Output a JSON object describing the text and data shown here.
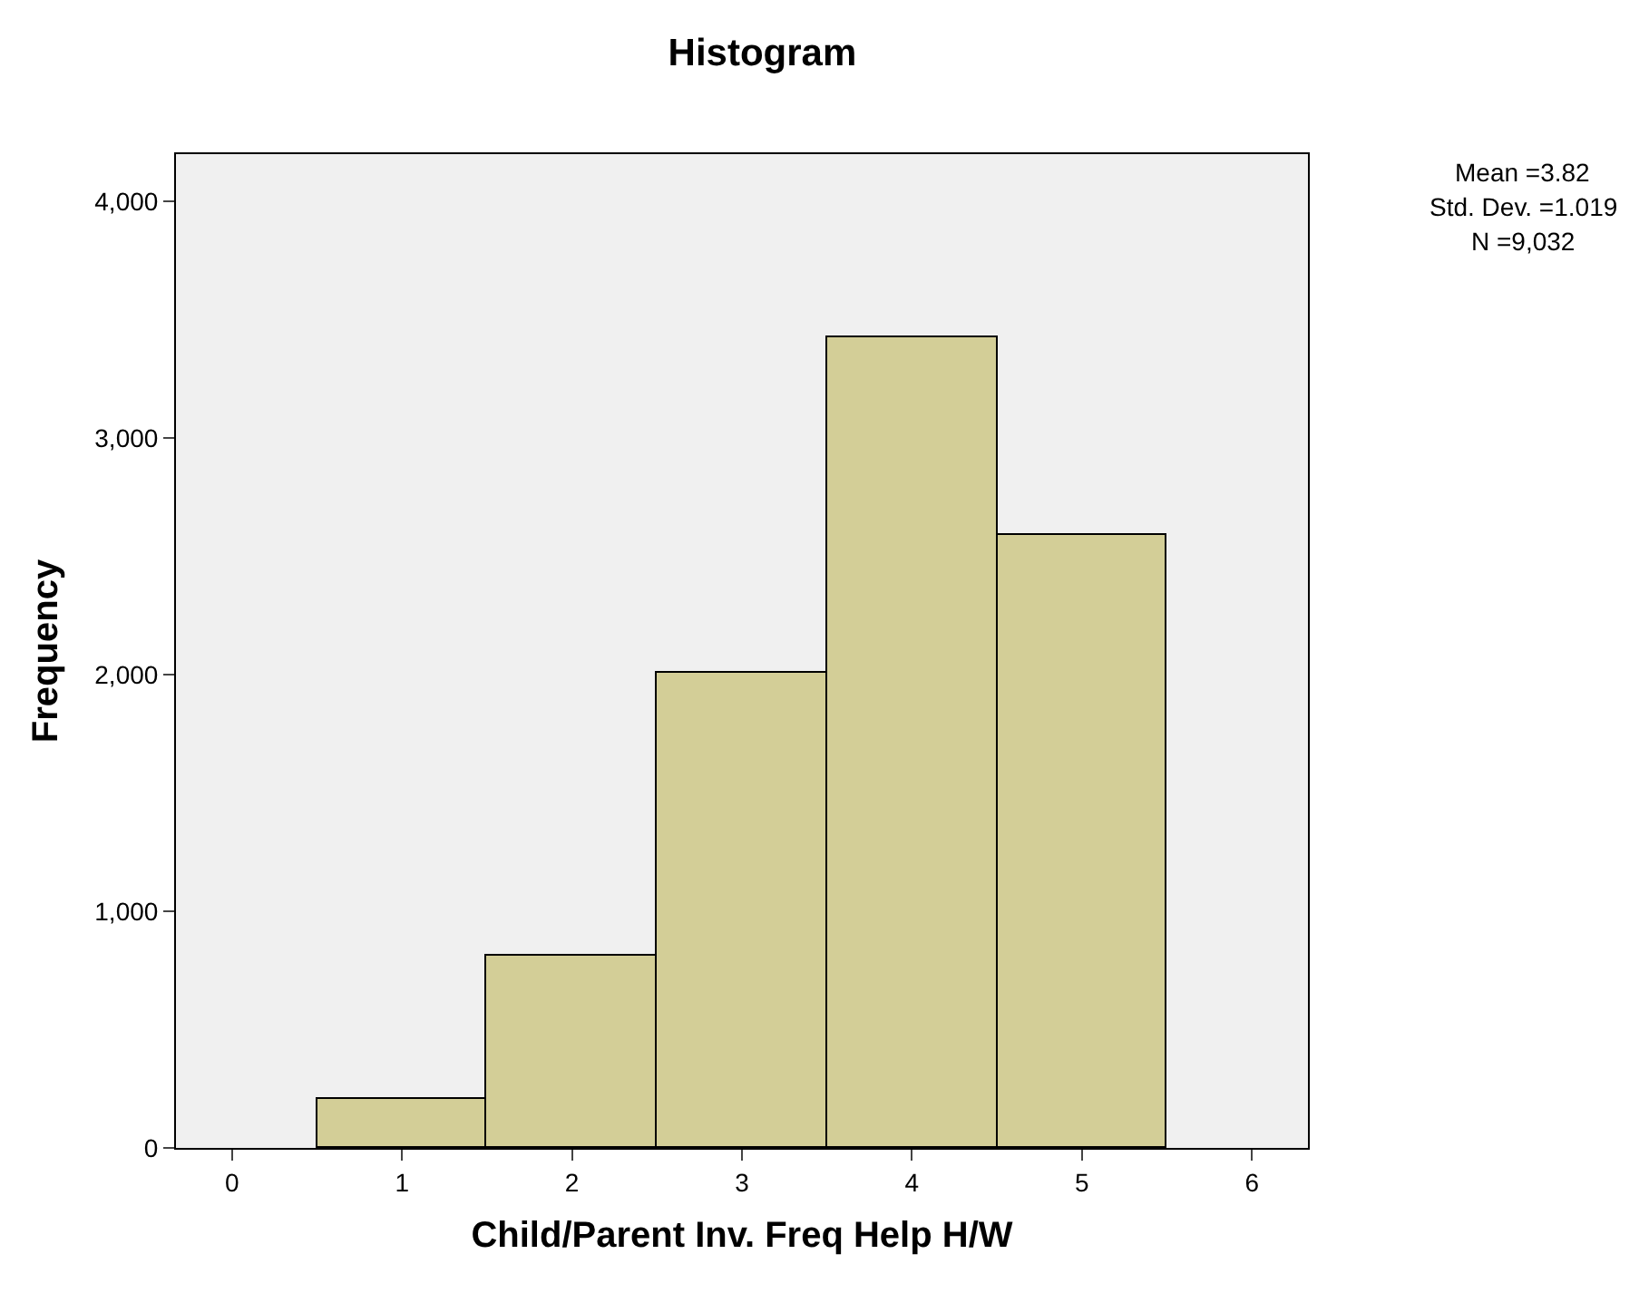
{
  "chart_data": {
    "type": "histogram",
    "title": "Histogram",
    "xlabel": "Child/Parent Inv. Freq Help H/W",
    "ylabel": "Frequency",
    "bins": [
      0.5,
      1.5,
      2.5,
      3.5,
      4.5,
      5.5
    ],
    "values": [
      207,
      812,
      2008,
      3425,
      2590
    ],
    "color": "#d3ce97",
    "xlim": [
      -0.33,
      6.33
    ],
    "xticks": [
      0,
      1,
      2,
      3,
      4,
      5,
      6
    ],
    "ylim": [
      0,
      4200
    ],
    "yticks": [
      {
        "value": 0,
        "label": "0"
      },
      {
        "value": 1000,
        "label": "1,000"
      },
      {
        "value": 2000,
        "label": "2,000"
      },
      {
        "value": 3000,
        "label": "3,000"
      },
      {
        "value": 4000,
        "label": "4,000"
      }
    ],
    "grid": false,
    "annotations": [
      "Mean =3.82",
      "Std. Dev. =1.019",
      "N =9,032"
    ]
  }
}
